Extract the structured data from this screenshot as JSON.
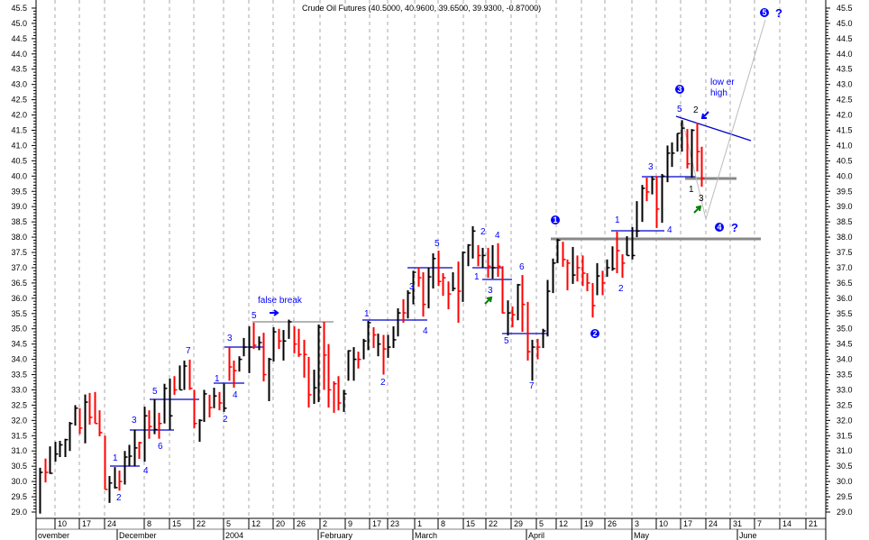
{
  "chart_data": {
    "type": "ohlc",
    "title": "Crude Oil Futures (40.5000, 40.9600, 39.6500, 39.9300, -0.87000)",
    "ylim": [
      29.0,
      45.5
    ],
    "ytick_step": 0.5,
    "grid": "vertical dashed, weekly",
    "colors": {
      "up": "#000000",
      "down": "#ff0000",
      "annotation": "#0000ff",
      "support": "#888888",
      "arrow": "#008000"
    },
    "bar_fields": [
      "high",
      "low",
      "close",
      "down"
    ],
    "bars": [
      [
        30.45,
        28.95,
        30.3,
        0
      ],
      [
        30.75,
        29.97,
        30.3,
        1
      ],
      [
        31.15,
        30.25,
        30.27,
        0
      ],
      [
        31.3,
        30.65,
        30.9,
        0
      ],
      [
        31.33,
        30.8,
        31.2,
        0
      ],
      [
        31.4,
        30.8,
        31.37,
        0
      ],
      [
        31.95,
        31.0,
        31.9,
        0
      ],
      [
        32.5,
        31.83,
        32.4,
        0
      ],
      [
        32.4,
        31.55,
        31.75,
        1
      ],
      [
        32.85,
        31.25,
        32.6,
        0
      ],
      [
        32.9,
        31.86,
        32.1,
        1
      ],
      [
        32.93,
        31.9,
        31.9,
        1
      ],
      [
        32.33,
        31.48,
        31.6,
        1
      ],
      [
        31.5,
        29.74,
        29.74,
        1
      ],
      [
        30.18,
        29.3,
        29.95,
        0
      ],
      [
        30.47,
        29.77,
        29.8,
        0
      ],
      [
        30.36,
        29.7,
        30.0,
        1
      ],
      [
        31.0,
        29.9,
        30.8,
        0
      ],
      [
        31.2,
        30.5,
        30.83,
        0
      ],
      [
        31.7,
        30.5,
        31.1,
        0
      ],
      [
        31.3,
        30.74,
        31.27,
        1
      ],
      [
        32.45,
        30.65,
        32.15,
        0
      ],
      [
        32.33,
        31.4,
        31.8,
        1
      ],
      [
        32.7,
        31.55,
        31.7,
        0
      ],
      [
        32.25,
        31.4,
        31.9,
        1
      ],
      [
        33.2,
        31.9,
        33.05,
        0
      ],
      [
        33.37,
        31.7,
        32.15,
        0
      ],
      [
        33.45,
        32.84,
        33.0,
        1
      ],
      [
        33.8,
        33.0,
        33.0,
        0
      ],
      [
        33.96,
        33.0,
        33.78,
        0
      ],
      [
        33.99,
        33.0,
        33.05,
        1
      ],
      [
        33.0,
        31.75,
        31.9,
        1
      ],
      [
        32.04,
        31.3,
        32.0,
        0
      ],
      [
        33.0,
        31.95,
        32.87,
        0
      ],
      [
        32.84,
        32.1,
        32.42,
        1
      ],
      [
        33.07,
        32.4,
        32.8,
        0
      ],
      [
        32.93,
        32.33,
        32.57,
        1
      ],
      [
        33.2,
        32.28,
        32.4,
        0
      ],
      [
        34.4,
        33.3,
        33.75,
        1
      ],
      [
        33.96,
        33.07,
        33.63,
        1
      ],
      [
        34.1,
        33.6,
        34.0,
        0
      ],
      [
        34.7,
        34.1,
        34.4,
        0
      ],
      [
        35.08,
        33.55,
        34.4,
        0
      ],
      [
        35.2,
        34.34,
        34.46,
        1
      ],
      [
        34.75,
        34.3,
        34.55,
        0
      ],
      [
        34.87,
        33.28,
        33.5,
        1
      ],
      [
        34.05,
        32.63,
        34.0,
        0
      ],
      [
        35.05,
        33.93,
        34.9,
        0
      ],
      [
        35.0,
        34.34,
        34.6,
        1
      ],
      [
        34.96,
        33.96,
        34.6,
        0
      ],
      [
        35.3,
        34.67,
        35.23,
        0
      ],
      [
        35.08,
        34.2,
        34.5,
        1
      ],
      [
        35.0,
        34.08,
        34.16,
        1
      ],
      [
        34.64,
        33.4,
        34.16,
        1
      ],
      [
        34.08,
        32.42,
        32.84,
        1
      ],
      [
        33.66,
        32.54,
        33.07,
        0
      ],
      [
        35.14,
        32.6,
        35.05,
        0
      ],
      [
        35.23,
        33.0,
        34.14,
        1
      ],
      [
        34.5,
        32.42,
        33.0,
        1
      ],
      [
        33.28,
        32.25,
        33.2,
        1
      ],
      [
        33.45,
        32.33,
        32.57,
        1
      ],
      [
        33.0,
        32.28,
        32.87,
        0
      ],
      [
        34.3,
        33.3,
        34.28,
        0
      ],
      [
        34.4,
        33.3,
        34.0,
        0
      ],
      [
        34.25,
        33.7,
        34.0,
        1
      ],
      [
        34.67,
        34.0,
        34.6,
        0
      ],
      [
        35.26,
        34.3,
        35.2,
        0
      ],
      [
        35.05,
        34.37,
        34.8,
        1
      ],
      [
        34.84,
        34.1,
        34.5,
        0
      ],
      [
        34.8,
        33.5,
        34.34,
        1
      ],
      [
        34.8,
        34.05,
        34.4,
        0
      ],
      [
        35.08,
        34.37,
        34.64,
        0
      ],
      [
        35.67,
        34.75,
        35.52,
        0
      ],
      [
        35.97,
        35.2,
        35.52,
        1
      ],
      [
        36.26,
        35.34,
        36.17,
        0
      ],
      [
        36.9,
        35.8,
        36.85,
        0
      ],
      [
        37.0,
        36.38,
        36.67,
        1
      ],
      [
        36.85,
        35.4,
        35.8,
        1
      ],
      [
        37.0,
        35.67,
        36.7,
        0
      ],
      [
        37.47,
        36.32,
        37.3,
        0
      ],
      [
        37.56,
        36.4,
        36.55,
        1
      ],
      [
        36.82,
        36.08,
        36.67,
        1
      ],
      [
        36.55,
        35.64,
        36.14,
        1
      ],
      [
        36.85,
        36.23,
        36.32,
        0
      ],
      [
        37.2,
        35.2,
        36.23,
        1
      ],
      [
        37.53,
        35.88,
        37.5,
        0
      ],
      [
        37.77,
        37.05,
        37.74,
        0
      ],
      [
        38.36,
        37.3,
        38.2,
        0
      ],
      [
        37.74,
        37.05,
        37.4,
        1
      ],
      [
        37.65,
        37.0,
        37.4,
        0
      ],
      [
        37.65,
        36.67,
        37.05,
        1
      ],
      [
        37.74,
        36.64,
        37.0,
        0
      ],
      [
        37.8,
        36.7,
        37.05,
        1
      ],
      [
        37.05,
        35.5,
        35.52,
        1
      ],
      [
        35.93,
        34.78,
        35.52,
        0
      ],
      [
        35.73,
        35.05,
        35.46,
        1
      ],
      [
        36.47,
        35.28,
        36.44,
        0
      ],
      [
        36.76,
        34.9,
        35.8,
        1
      ],
      [
        35.88,
        33.96,
        34.25,
        1
      ],
      [
        34.64,
        33.3,
        34.4,
        0
      ],
      [
        34.67,
        34.0,
        34.4,
        1
      ],
      [
        35.0,
        34.37,
        34.93,
        0
      ],
      [
        36.6,
        34.75,
        36.23,
        0
      ],
      [
        37.3,
        36.17,
        37.15,
        0
      ],
      [
        37.95,
        37.15,
        37.9,
        0
      ],
      [
        37.85,
        37.03,
        37.27,
        1
      ],
      [
        37.27,
        36.26,
        37.15,
        1
      ],
      [
        37.68,
        36.47,
        36.76,
        0
      ],
      [
        37.4,
        36.55,
        37.0,
        1
      ],
      [
        37.4,
        36.4,
        36.82,
        1
      ],
      [
        36.82,
        36.23,
        36.5,
        1
      ],
      [
        36.5,
        35.37,
        35.76,
        1
      ],
      [
        37.15,
        36.1,
        36.73,
        0
      ],
      [
        36.9,
        36.1,
        36.5,
        1
      ],
      [
        37.27,
        36.7,
        37.0,
        0
      ],
      [
        37.7,
        36.9,
        36.97,
        0
      ],
      [
        38.18,
        36.82,
        37.56,
        1
      ],
      [
        37.44,
        36.67,
        37.15,
        1
      ],
      [
        38.03,
        37.4,
        37.4,
        0
      ],
      [
        38.33,
        37.27,
        37.4,
        0
      ],
      [
        39.18,
        38.0,
        38.2,
        0
      ],
      [
        39.71,
        38.5,
        39.6,
        0
      ],
      [
        39.95,
        39.18,
        39.48,
        1
      ],
      [
        40.0,
        39.4,
        39.9,
        0
      ],
      [
        40.0,
        38.3,
        38.92,
        1
      ],
      [
        40.07,
        38.47,
        40.0,
        0
      ],
      [
        41.0,
        39.8,
        40.75,
        0
      ],
      [
        41.1,
        40.3,
        40.75,
        0
      ],
      [
        41.4,
        40.8,
        41.4,
        0
      ],
      [
        41.83,
        40.8,
        41.57,
        0
      ],
      [
        41.54,
        40.25,
        40.4,
        1
      ],
      [
        41.54,
        39.95,
        41.5,
        0
      ],
      [
        41.75,
        40.15,
        40.8,
        1
      ],
      [
        40.96,
        39.65,
        39.93,
        1
      ]
    ],
    "x_day_labels": [
      "10",
      "17",
      "24",
      "8",
      "15",
      "22",
      "5",
      "12",
      "20",
      "26",
      "2",
      "9",
      "17",
      "23",
      "1",
      "8",
      "15",
      "22",
      "29",
      "5",
      "12",
      "19",
      "26",
      "3",
      "10",
      "17",
      "24",
      "31",
      "7",
      "14",
      "21"
    ],
    "x_month_labels": [
      "ovember",
      "December",
      "2004",
      "February",
      "March",
      "April",
      "May",
      "June"
    ],
    "annotations": {
      "wave_labels": [
        "1",
        "2",
        "3",
        "4",
        "5",
        "6",
        "7",
        "1",
        "2",
        "3",
        "4",
        "5",
        "1",
        "2",
        "3",
        "4",
        "5",
        "1",
        "2",
        "4",
        "3",
        "6",
        "5",
        "7",
        "1",
        "2",
        "3",
        "4",
        "5"
      ],
      "black_labels": [
        "1",
        "1",
        "3",
        "2"
      ],
      "circled": [
        "1",
        "2",
        "3",
        "4",
        "5"
      ],
      "question_marks": [
        "?",
        "?"
      ],
      "false_break": "false break",
      "lower_high_1": "low er",
      "lower_high_2": "high"
    }
  }
}
